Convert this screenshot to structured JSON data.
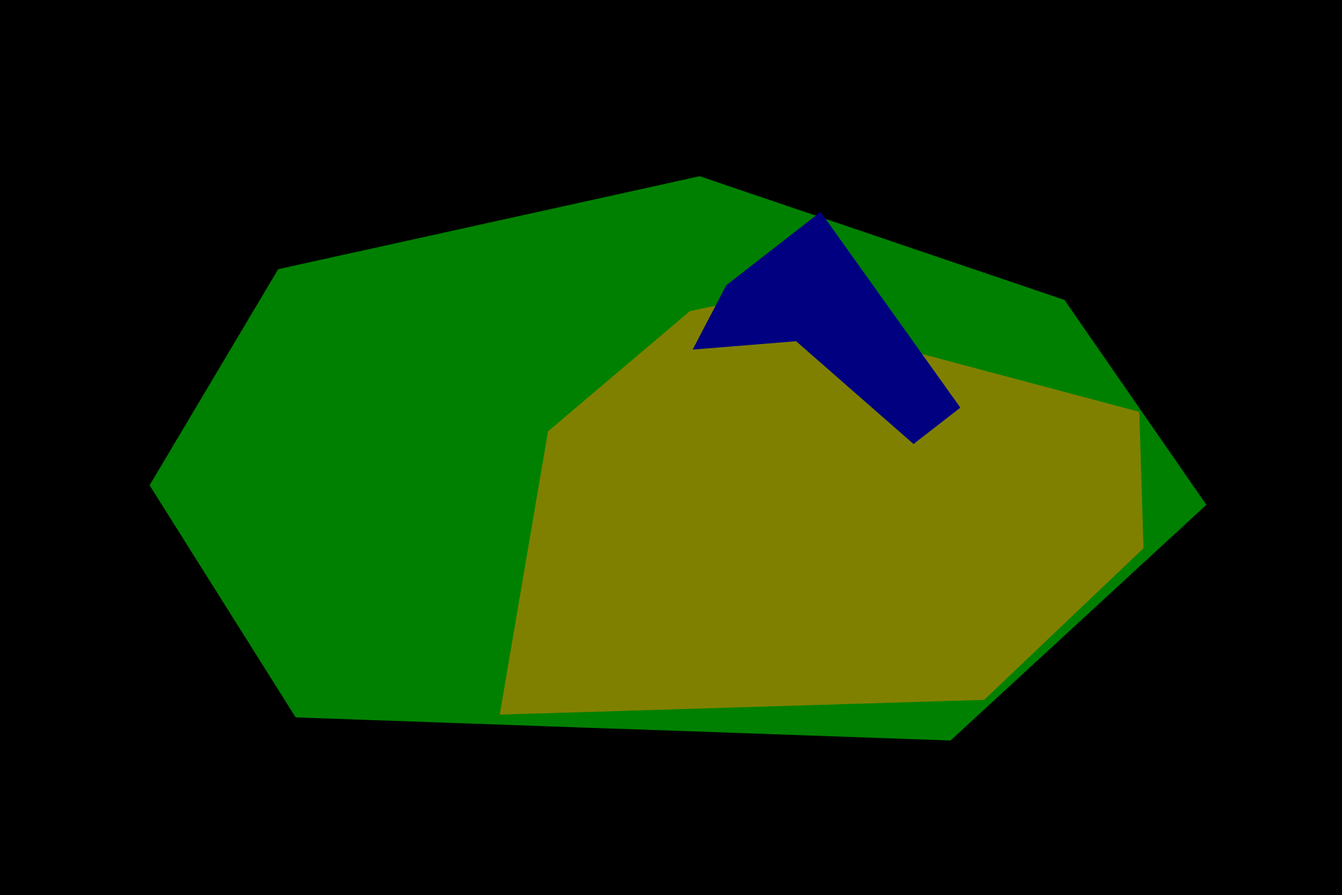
{
  "scene": {
    "background_color": "#000000",
    "shapes": [
      {
        "name": "green-polygon",
        "kind": "polygon",
        "fill": "#008000",
        "vertices": 8
      },
      {
        "name": "olive-polygon",
        "kind": "polygon",
        "fill": "#808000",
        "vertices": 8
      },
      {
        "name": "navy-polygon",
        "kind": "polygon",
        "fill": "#000080",
        "vertices": 6
      }
    ]
  }
}
